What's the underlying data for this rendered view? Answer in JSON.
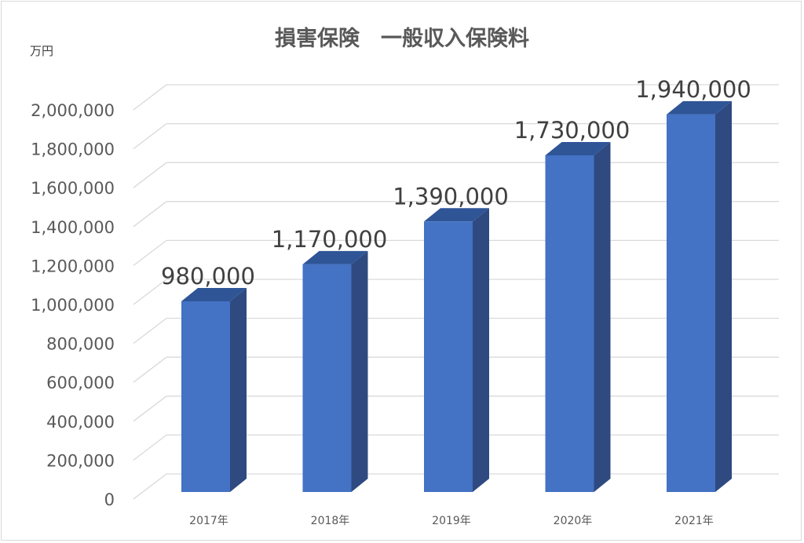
{
  "chart_data": {
    "type": "bar",
    "title": "損害保険　一般収入保険料",
    "unit_label": "万円",
    "categories": [
      "2017年",
      "2018年",
      "2019年",
      "2020年",
      "2021年"
    ],
    "values": [
      980000,
      1170000,
      1390000,
      1730000,
      1940000
    ],
    "data_labels": [
      "980,000",
      "1,170,000",
      "1,390,000",
      "1,730,000",
      "1,940,000"
    ],
    "yticks": [
      0,
      200000,
      400000,
      600000,
      800000,
      1000000,
      1200000,
      1400000,
      1600000,
      1800000,
      2000000
    ],
    "ytick_labels": [
      "0",
      "200,000",
      "400,000",
      "600,000",
      "800,000",
      "1,000,000",
      "1,200,000",
      "1,400,000",
      "1,600,000",
      "1,800,000",
      "2,000,000"
    ],
    "ylim": [
      0,
      2000000
    ],
    "grid": true,
    "legend": "none",
    "colors": {
      "bar_front": "#4472c4",
      "bar_side": "#2e4a80",
      "bar_top": "#2f5597",
      "grid": "#d9d9d9"
    }
  }
}
